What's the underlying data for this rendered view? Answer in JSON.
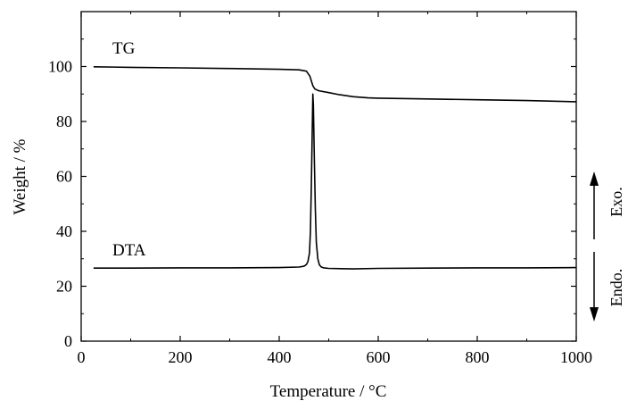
{
  "chart_data": {
    "type": "line",
    "xlabel": "Temperature / °C",
    "ylabel": "Weight / %",
    "xlim": [
      0,
      1000
    ],
    "ylim": [
      0,
      120
    ],
    "xticks": [
      "0",
      "200",
      "400",
      "600",
      "800",
      "1000"
    ],
    "yticks": [
      "0",
      "20",
      "40",
      "60",
      "80",
      "100"
    ],
    "grid": false,
    "series": [
      {
        "name": "TG",
        "x": [
          25,
          100,
          200,
          300,
          400,
          440,
          455,
          462,
          468,
          472,
          480,
          500,
          520,
          550,
          580,
          600,
          700,
          800,
          900,
          1000
        ],
        "y": [
          99.9,
          99.7,
          99.5,
          99.3,
          99.0,
          98.8,
          98.3,
          96.5,
          93.0,
          91.8,
          91.2,
          90.5,
          89.8,
          89.0,
          88.6,
          88.5,
          88.2,
          87.9,
          87.6,
          87.2
        ]
      },
      {
        "name": "DTA",
        "x": [
          25,
          100,
          200,
          300,
          400,
          440,
          450,
          455,
          458,
          461,
          463,
          465,
          467,
          468,
          469,
          471,
          473,
          475,
          478,
          481,
          485,
          490,
          500,
          550,
          600,
          700,
          800,
          900,
          1000
        ],
        "y": [
          26.6,
          26.6,
          26.7,
          26.7,
          26.8,
          27.0,
          27.3,
          27.9,
          29.0,
          32.0,
          40.0,
          58.0,
          80.0,
          90.0,
          86.0,
          66.0,
          48.0,
          36.0,
          30.0,
          27.8,
          27.0,
          26.7,
          26.5,
          26.3,
          26.5,
          26.6,
          26.7,
          26.7,
          26.8
        ]
      }
    ],
    "annotations": [
      "TG",
      "DTA",
      "Exo.",
      "Endo."
    ]
  }
}
